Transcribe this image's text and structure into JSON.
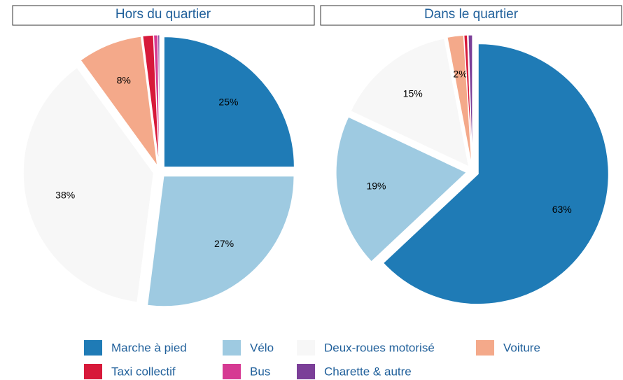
{
  "chart_data": [
    {
      "type": "pie",
      "title": "Hors du quartier",
      "categories": [
        "Marche à pied",
        "Vélo",
        "Deux-roues motorisé",
        "Voiture",
        "Taxi collectif",
        "Bus",
        "Charette & autre"
      ],
      "values": [
        25,
        27,
        38,
        8,
        1.3,
        0.5,
        0.2
      ],
      "value_labels": [
        "25%",
        "27%",
        "38%",
        "8%",
        null,
        null,
        null
      ],
      "colors": [
        "#1f7bb6",
        "#9ecae1",
        "#f7f7f7",
        "#f4a98a",
        "#d7193a",
        "#d63a93",
        "#7b3f98"
      ]
    },
    {
      "type": "pie",
      "title": "Dans le quartier",
      "categories": [
        "Marche à pied",
        "Vélo",
        "Deux-roues motorisé",
        "Voiture",
        "Taxi collectif",
        "Bus",
        "Charette & autre"
      ],
      "values": [
        63,
        19,
        15,
        2,
        0.4,
        0.1,
        0.5
      ],
      "value_labels": [
        "63%",
        "19%",
        "15%",
        "2%",
        null,
        null,
        null
      ],
      "colors": [
        "#1f7bb6",
        "#9ecae1",
        "#f7f7f7",
        "#f4a98a",
        "#d7193a",
        "#d63a93",
        "#7b3f98"
      ]
    }
  ]
}
